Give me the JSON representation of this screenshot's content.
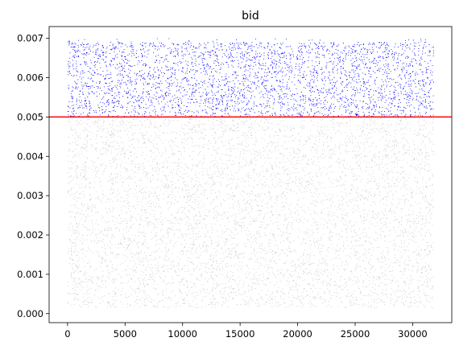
{
  "chart_data": {
    "type": "scatter",
    "title": "bid",
    "xlabel": "",
    "ylabel": "",
    "xlim": [
      -1600,
      33400
    ],
    "ylim": [
      -0.00023,
      0.0073
    ],
    "x_ticks": [
      0,
      5000,
      10000,
      15000,
      20000,
      25000,
      30000
    ],
    "x_tick_labels": [
      "0",
      "5000",
      "10000",
      "15000",
      "20000",
      "25000",
      "30000"
    ],
    "y_ticks": [
      0.0,
      0.001,
      0.002,
      0.003,
      0.004,
      0.005,
      0.006,
      0.007
    ],
    "y_tick_labels": [
      "0.000",
      "0.001",
      "0.002",
      "0.003",
      "0.004",
      "0.005",
      "0.006",
      "0.007"
    ],
    "grid": false,
    "threshold": {
      "y": 0.005,
      "color": "#ff0000"
    },
    "series": [
      {
        "role": "above threshold",
        "color": "#0000ff",
        "x_range": [
          0,
          31800
        ],
        "y_range": [
          0.005,
          0.0069
        ],
        "n_points_approx": 6200
      },
      {
        "role": "below threshold",
        "color": "#c8c8c8",
        "x_range": [
          0,
          31800
        ],
        "y_range": [
          0.00015,
          0.005
        ],
        "n_points_approx": 25600
      }
    ]
  }
}
